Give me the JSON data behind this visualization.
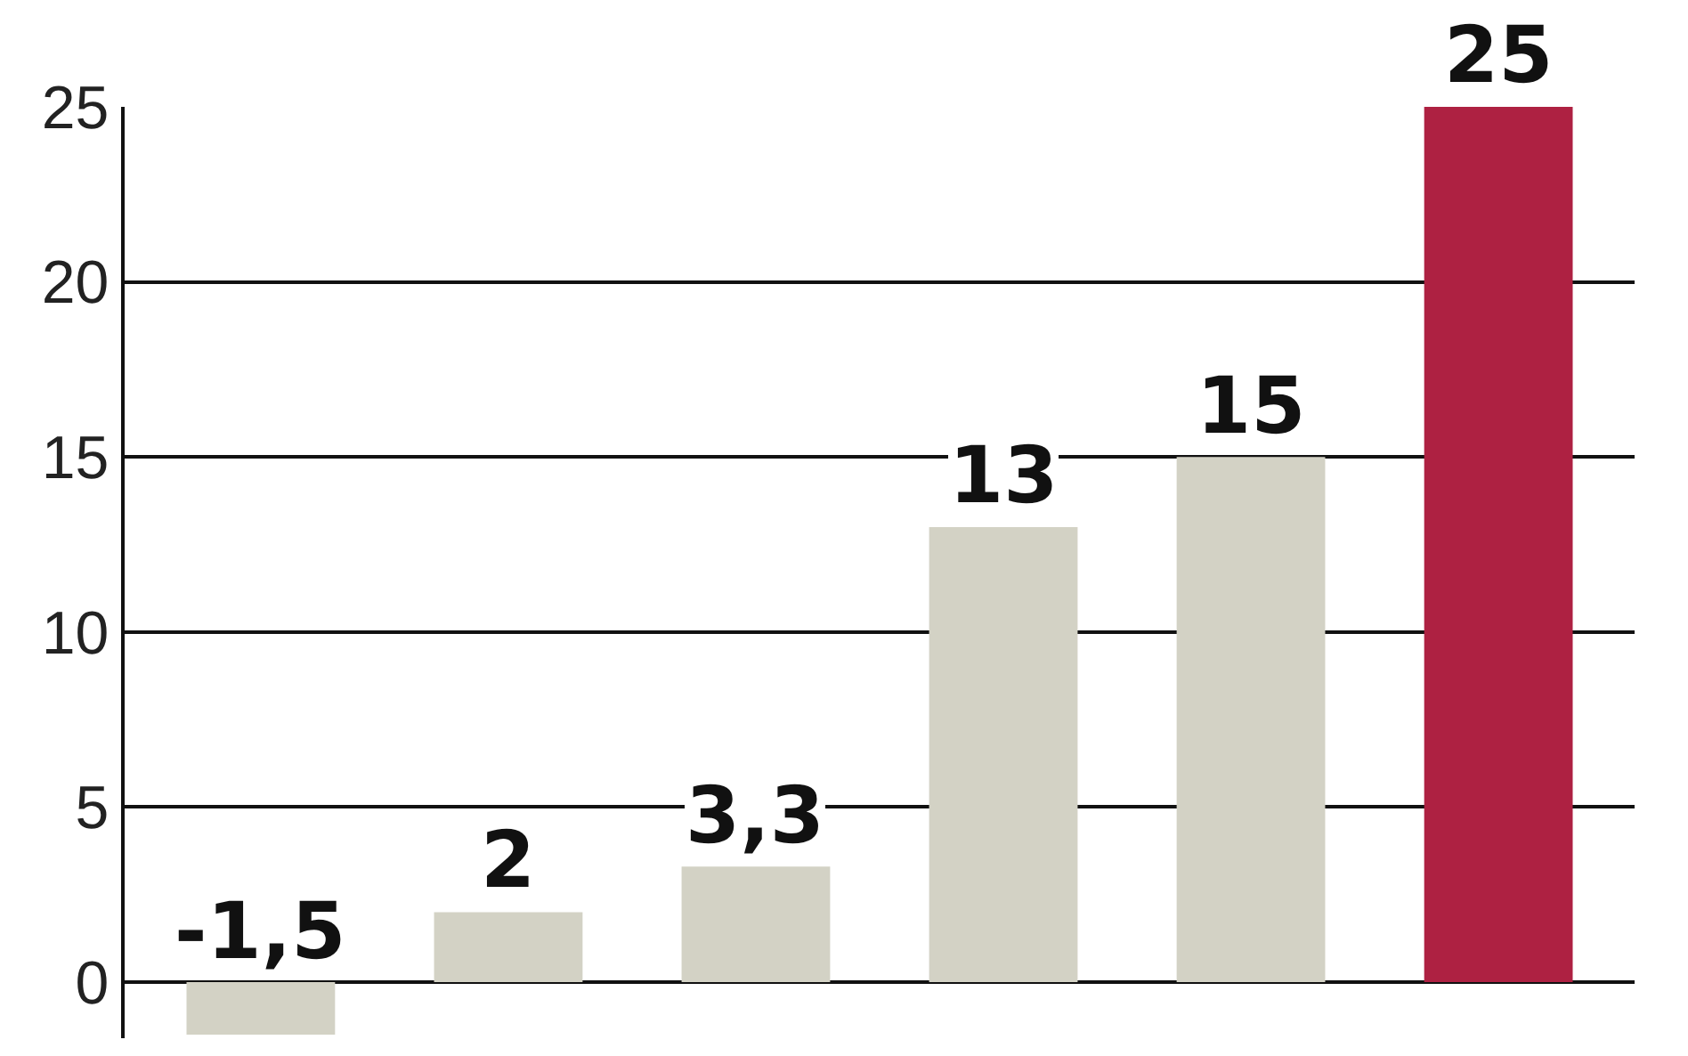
{
  "chart_data": {
    "type": "bar",
    "categories": [
      null,
      null,
      null,
      null,
      null,
      null
    ],
    "values": [
      -1.5,
      2,
      3.3,
      13,
      15,
      25
    ],
    "colors": [
      "#d3d2c5",
      "#d3d2c5",
      "#d3d2c5",
      "#d3d2c5",
      "#d3d2c5",
      "#ae2142"
    ],
    "value_labels": [
      "-1,5",
      "2",
      "3,3",
      "13",
      "15",
      "25"
    ],
    "ylim": [
      -1.6,
      25
    ],
    "yticks": [
      0,
      5,
      10,
      15,
      20,
      25
    ],
    "grid": "y",
    "tick_labels": "y"
  }
}
